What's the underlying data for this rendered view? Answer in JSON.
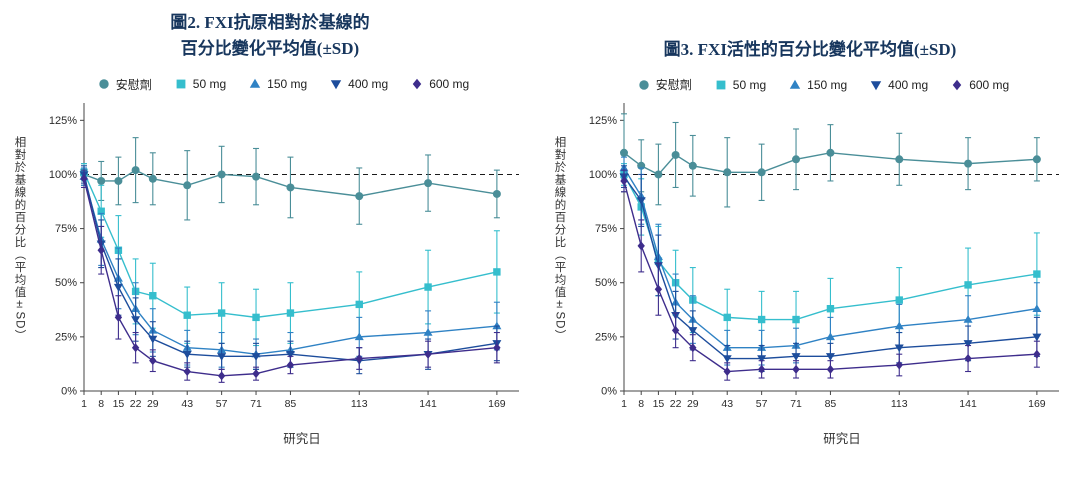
{
  "chart_data": [
    {
      "type": "line",
      "name": "figure-2",
      "title_lines": [
        "圖2. FXI抗原相對於基線的",
        "百分比變化平均值(±SD)"
      ],
      "xlabel": "研究日",
      "ylabel": "相對於基線的百分比（平均值±SD）",
      "x": [
        1,
        8,
        15,
        22,
        29,
        43,
        57,
        71,
        85,
        113,
        141,
        169
      ],
      "xlim": [
        1,
        178
      ],
      "ylim": [
        0,
        133
      ],
      "yticks": [
        0,
        25,
        50,
        75,
        100,
        125
      ],
      "ytick_labels": [
        "0%",
        "25%",
        "50%",
        "75%",
        "100%",
        "125%"
      ],
      "reference_line": 100,
      "legend_position": "top",
      "grid": false,
      "series": [
        {
          "name": "安慰劑",
          "color": "#4a8e98",
          "marker": "circle",
          "values": [
            100,
            97,
            97,
            102,
            98,
            95,
            100,
            99,
            94,
            90,
            96,
            91
          ],
          "sd": [
            5,
            9,
            11,
            15,
            12,
            16,
            13,
            13,
            14,
            13,
            13,
            11
          ]
        },
        {
          "name": "50 mg",
          "color": "#35becd",
          "marker": "square",
          "values": [
            101,
            83,
            65,
            46,
            44,
            35,
            36,
            34,
            36,
            40,
            48,
            55
          ],
          "sd": [
            4,
            12,
            16,
            15,
            15,
            13,
            14,
            13,
            14,
            15,
            17,
            19
          ]
        },
        {
          "name": "150 mg",
          "color": "#2f82c4",
          "marker": "triangle-up",
          "values": [
            99,
            70,
            52,
            38,
            28,
            20,
            19,
            17,
            19,
            25,
            27,
            30
          ],
          "sd": [
            4,
            12,
            14,
            12,
            10,
            8,
            8,
            7,
            8,
            9,
            10,
            11
          ]
        },
        {
          "name": "400 mg",
          "color": "#1d4d9c",
          "marker": "triangle-down",
          "values": [
            100,
            68,
            48,
            33,
            24,
            17,
            16,
            16,
            17,
            14,
            17,
            22
          ],
          "sd": [
            4,
            11,
            13,
            10,
            8,
            6,
            6,
            6,
            6,
            6,
            7,
            8
          ]
        },
        {
          "name": "600 mg",
          "color": "#3e2d8c",
          "marker": "diamond",
          "values": [
            98,
            65,
            34,
            20,
            14,
            9,
            7,
            8,
            12,
            15,
            17,
            20
          ],
          "sd": [
            4,
            11,
            10,
            7,
            5,
            4,
            3,
            3,
            4,
            5,
            6,
            7
          ]
        }
      ]
    },
    {
      "type": "line",
      "name": "figure-3",
      "title_lines": [
        "圖3. FXI活性的百分比變化平均值(±SD)"
      ],
      "xlabel": "研究日",
      "ylabel": "相對於基線的百分比（平均值±SD）",
      "x": [
        1,
        8,
        15,
        22,
        29,
        43,
        57,
        71,
        85,
        113,
        141,
        169
      ],
      "xlim": [
        1,
        178
      ],
      "ylim": [
        0,
        133
      ],
      "yticks": [
        0,
        25,
        50,
        75,
        100,
        125
      ],
      "ytick_labels": [
        "0%",
        "25%",
        "50%",
        "75%",
        "100%",
        "125%"
      ],
      "reference_line": 100,
      "legend_position": "top",
      "grid": false,
      "series": [
        {
          "name": "安慰劑",
          "color": "#4a8e98",
          "marker": "circle",
          "values": [
            110,
            104,
            100,
            109,
            104,
            101,
            101,
            107,
            110,
            107,
            105,
            107
          ],
          "sd": [
            18,
            12,
            14,
            15,
            14,
            16,
            13,
            14,
            13,
            12,
            12,
            10
          ]
        },
        {
          "name": "50 mg",
          "color": "#35becd",
          "marker": "square",
          "values": [
            100,
            85,
            60,
            50,
            42,
            34,
            33,
            33,
            38,
            42,
            49,
            54
          ],
          "sd": [
            5,
            13,
            16,
            15,
            15,
            13,
            13,
            13,
            14,
            15,
            17,
            19
          ]
        },
        {
          "name": "150 mg",
          "color": "#2f82c4",
          "marker": "triangle-up",
          "values": [
            103,
            90,
            62,
            41,
            33,
            20,
            20,
            21,
            25,
            30,
            33,
            38
          ],
          "sd": [
            5,
            13,
            15,
            13,
            11,
            8,
            8,
            8,
            9,
            10,
            11,
            12
          ]
        },
        {
          "name": "400 mg",
          "color": "#1d4d9c",
          "marker": "triangle-down",
          "values": [
            99,
            88,
            58,
            35,
            28,
            15,
            15,
            16,
            16,
            20,
            22,
            25
          ],
          "sd": [
            5,
            12,
            14,
            11,
            9,
            6,
            6,
            6,
            6,
            7,
            8,
            9
          ]
        },
        {
          "name": "600 mg",
          "color": "#3e2d8c",
          "marker": "diamond",
          "values": [
            97,
            67,
            47,
            28,
            20,
            9,
            10,
            10,
            10,
            12,
            15,
            17
          ],
          "sd": [
            5,
            12,
            12,
            8,
            6,
            4,
            4,
            4,
            4,
            5,
            6,
            6
          ]
        }
      ]
    }
  ],
  "style": {
    "title_color": "#17365d",
    "axis_color": "#444444",
    "tick_label_color": "#2b2b2b",
    "reference_line_color": "#1a1a1a",
    "background": "#ffffff"
  }
}
